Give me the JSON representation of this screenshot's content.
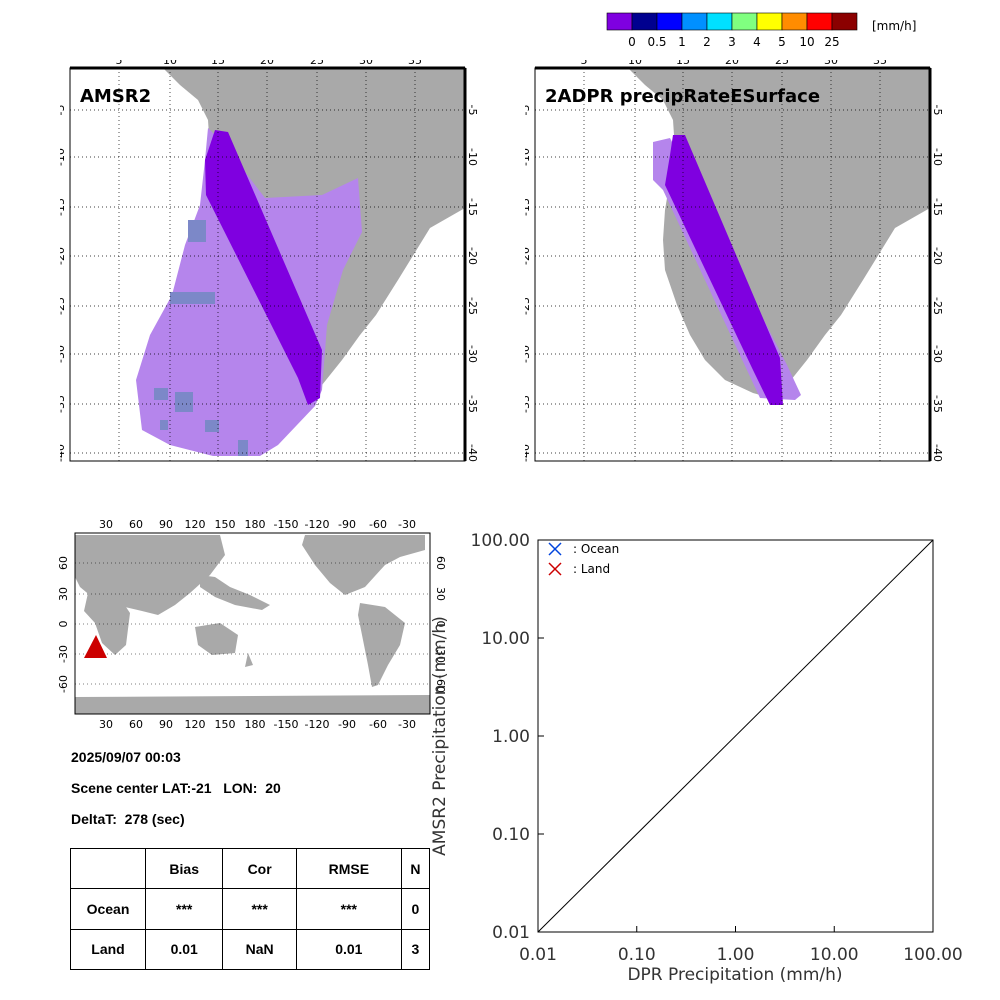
{
  "colorbar": {
    "unit": "[mm/h]",
    "ticks": [
      "0",
      "0.5",
      "1",
      "2",
      "3",
      "4",
      "5",
      "10",
      "25"
    ],
    "colors": [
      "#7f00e0",
      "#00008f",
      "#0000ff",
      "#0090ff",
      "#00e0ff",
      "#80ff80",
      "#ffff00",
      "#ff8c00",
      "#ff0000",
      "#8b0000"
    ]
  },
  "maps": {
    "left_title": "AMSR2",
    "right_title": "2ADPR precipRateESurface",
    "lon_ticks": [
      "5",
      "10",
      "15",
      "20",
      "25",
      "30",
      "35"
    ],
    "lat_ticks": [
      "-5",
      "-10",
      "-15",
      "-20",
      "-25",
      "-30",
      "-35",
      "-40"
    ],
    "land_color": "#a9a9a9",
    "light_rain_color": "#b585ec",
    "swath_color": "#7f00e0"
  },
  "world_map": {
    "lon_ticks": [
      "30",
      "60",
      "90",
      "120",
      "150",
      "180",
      "-150",
      "-120",
      "-90",
      "-60",
      "-30"
    ],
    "lat_ticks": [
      "60",
      "30",
      "0",
      "-30",
      "-60"
    ],
    "marker_color": "#cc0000"
  },
  "info": {
    "datetime": "2025/09/07 00:03",
    "scene_center": "Scene center LAT:-21   LON:  20",
    "deltat": "DeltaT:  278 (sec)"
  },
  "stats_table": {
    "headers": [
      "",
      "Bias",
      "Cor",
      "RMSE",
      "N"
    ],
    "rows": [
      [
        "Ocean",
        "***",
        "***",
        "***",
        "0"
      ],
      [
        "Land",
        "0.01",
        "NaN",
        "0.01",
        "3"
      ]
    ]
  },
  "chart_data": {
    "type": "scatter",
    "xlabel": "DPR Precipitation (mm/h)",
    "ylabel": "AMSR2 Precipitation (mm/h)",
    "xscale": "log",
    "yscale": "log",
    "xlim": [
      0.01,
      100
    ],
    "ylim": [
      0.01,
      100
    ],
    "x_ticks": [
      "0.01",
      "0.10",
      "1.00",
      "10.00",
      "100.00"
    ],
    "y_ticks": [
      "0.01",
      "0.10",
      "1.00",
      "10.00",
      "100.00"
    ],
    "series": [
      {
        "name": ": Ocean",
        "color": "#0044dd",
        "marker": "x",
        "points": []
      },
      {
        "name": ": Land",
        "color": "#cc0000",
        "marker": "x",
        "points": []
      }
    ],
    "reference_line": "y = x",
    "legend": "top-left"
  }
}
